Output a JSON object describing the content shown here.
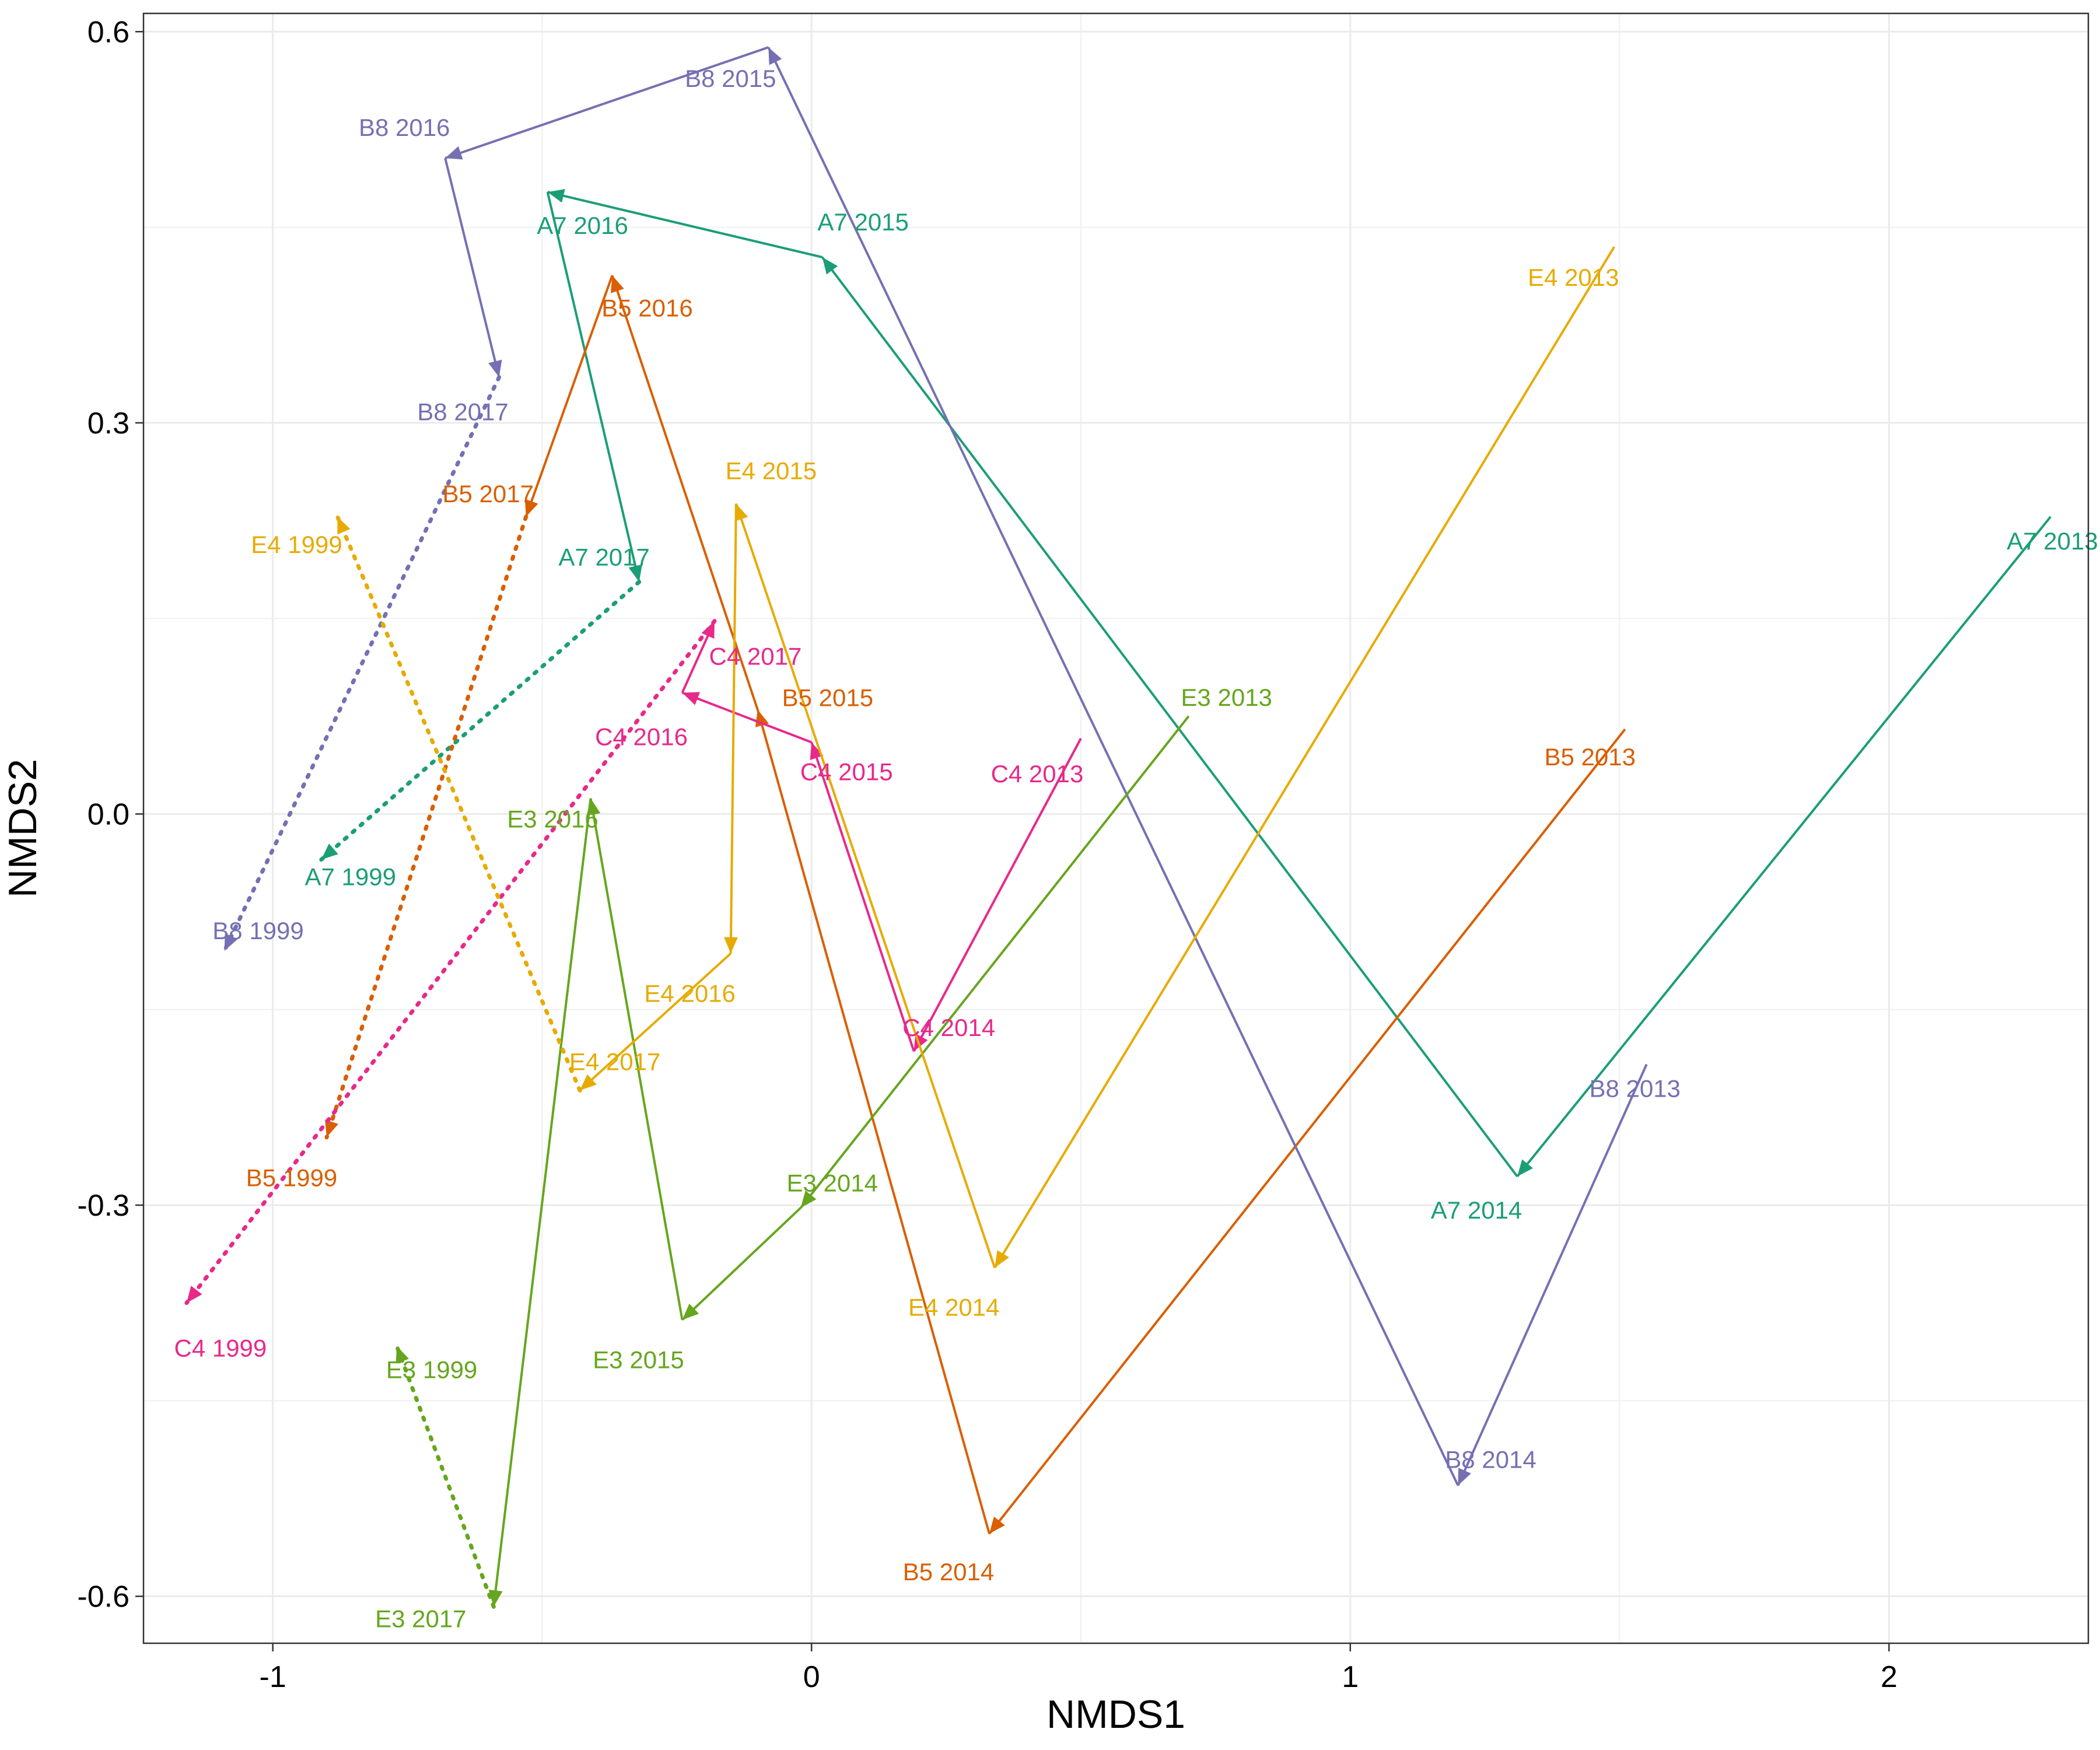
{
  "chart_data": {
    "type": "scatter",
    "title": "",
    "xlabel": "NMDS1",
    "ylabel": "NMDS2",
    "xlim": [
      -1.24,
      2.37
    ],
    "ylim": [
      -0.636,
      0.614
    ],
    "xticks": [
      -1,
      0,
      1,
      2
    ],
    "yticks": [
      -0.6,
      -0.3,
      0.0,
      0.3,
      0.6
    ],
    "xtick_labels": [
      "-1",
      "0",
      "1",
      "2"
    ],
    "ytick_labels": [
      "-0.6",
      "-0.3",
      "0.0",
      "0.3",
      "0.6"
    ],
    "grid": true,
    "legend": "none",
    "series": [
      {
        "name": "A7",
        "color": "#1b9e77",
        "points": [
          {
            "label": "A7 1999",
            "x": -0.91,
            "y": -0.035
          },
          {
            "label": "A7 2013",
            "x": 2.3,
            "y": 0.228
          },
          {
            "label": "A7 2014",
            "x": 1.31,
            "y": -0.278
          },
          {
            "label": "A7 2015",
            "x": 0.02,
            "y": 0.427
          },
          {
            "label": "A7 2016",
            "x": -0.49,
            "y": 0.477
          },
          {
            "label": "A7 2017",
            "x": -0.32,
            "y": 0.178
          }
        ]
      },
      {
        "name": "B5",
        "color": "#d95f02",
        "points": [
          {
            "label": "B5 1999",
            "x": -0.9,
            "y": -0.248
          },
          {
            "label": "B5 2013",
            "x": 1.51,
            "y": 0.065
          },
          {
            "label": "B5 2014",
            "x": 0.33,
            "y": -0.552
          },
          {
            "label": "B5 2015",
            "x": -0.1,
            "y": 0.08
          },
          {
            "label": "B5 2016",
            "x": -0.37,
            "y": 0.413
          },
          {
            "label": "B5 2017",
            "x": -0.53,
            "y": 0.228
          }
        ]
      },
      {
        "name": "B8",
        "color": "#7570b3",
        "points": [
          {
            "label": "B8 1999",
            "x": -1.09,
            "y": -0.105
          },
          {
            "label": "B8 2013",
            "x": 1.55,
            "y": -0.192
          },
          {
            "label": "B8 2014",
            "x": 1.2,
            "y": -0.515
          },
          {
            "label": "B8 2015",
            "x": -0.08,
            "y": 0.588
          },
          {
            "label": "B8 2016",
            "x": -0.68,
            "y": 0.503
          },
          {
            "label": "B8 2017",
            "x": -0.58,
            "y": 0.335
          }
        ]
      },
      {
        "name": "C4",
        "color": "#e7298a",
        "points": [
          {
            "label": "C4 1999",
            "x": -1.16,
            "y": -0.375
          },
          {
            "label": "C4 2013",
            "x": 0.5,
            "y": 0.058
          },
          {
            "label": "C4 2014",
            "x": 0.19,
            "y": -0.182
          },
          {
            "label": "C4 2015",
            "x": 0.0,
            "y": 0.055
          },
          {
            "label": "C4 2016",
            "x": -0.24,
            "y": 0.093
          },
          {
            "label": "C4 2017",
            "x": -0.18,
            "y": 0.148
          }
        ]
      },
      {
        "name": "E3",
        "color": "#66a61e",
        "points": [
          {
            "label": "E3 1999",
            "x": -0.77,
            "y": -0.408
          },
          {
            "label": "E3 2013",
            "x": 0.7,
            "y": 0.075
          },
          {
            "label": "E3 2014",
            "x": -0.02,
            "y": -0.302
          },
          {
            "label": "E3 2015",
            "x": -0.24,
            "y": -0.388
          },
          {
            "label": "E3 2016",
            "x": -0.41,
            "y": 0.012
          },
          {
            "label": "E3 2017",
            "x": -0.59,
            "y": -0.608
          }
        ]
      },
      {
        "name": "E4",
        "color": "#e6ab02",
        "points": [
          {
            "label": "E4 1999",
            "x": -0.88,
            "y": 0.228
          },
          {
            "label": "E4 2013",
            "x": 1.49,
            "y": 0.435
          },
          {
            "label": "E4 2014",
            "x": 0.34,
            "y": -0.348
          },
          {
            "label": "E4 2015",
            "x": -0.14,
            "y": 0.238
          },
          {
            "label": "E4 2016",
            "x": -0.15,
            "y": -0.107
          },
          {
            "label": "E4 2017",
            "x": -0.43,
            "y": -0.212
          }
        ]
      }
    ]
  }
}
